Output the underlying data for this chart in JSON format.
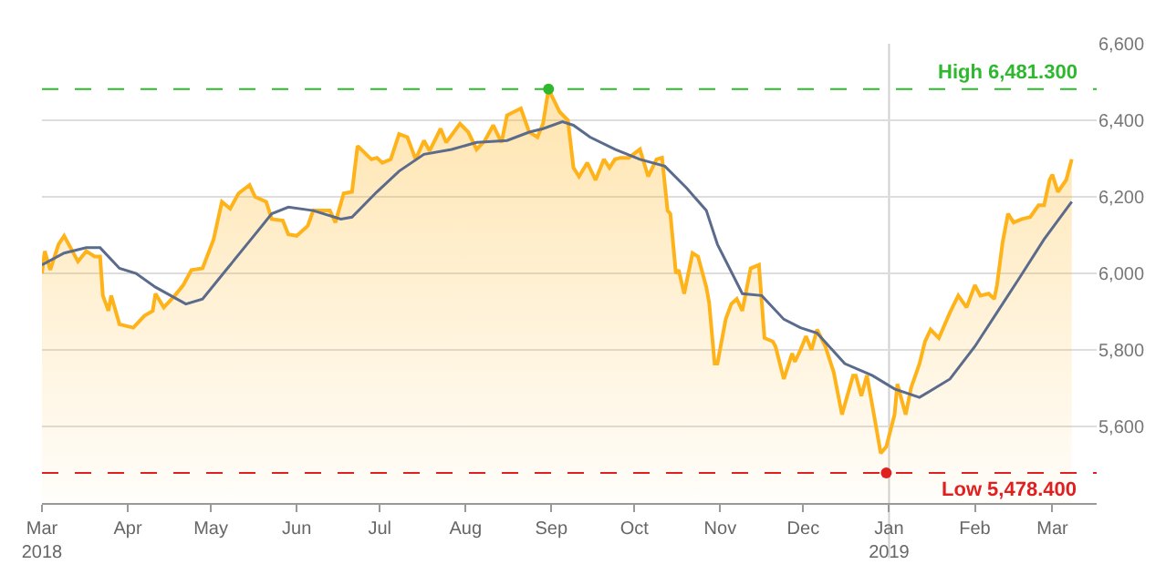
{
  "chart_data": {
    "type": "area",
    "series": [
      {
        "color": "#ffb31a",
        "x": [
          "2018-03-01",
          "2018-03-02",
          "2018-03-04",
          "2018-03-07",
          "2018-03-09",
          "2018-03-14",
          "2018-03-17",
          "2018-03-20",
          "2018-03-22",
          "2018-03-23",
          "2018-03-25",
          "2018-03-26",
          "2018-03-29",
          "2018-04-03",
          "2018-04-07",
          "2018-04-10",
          "2018-04-11",
          "2018-04-14",
          "2018-04-18",
          "2018-04-21",
          "2018-04-24",
          "2018-04-28",
          "2018-05-02",
          "2018-05-05",
          "2018-05-08",
          "2018-05-11",
          "2018-05-15",
          "2018-05-17",
          "2018-05-21",
          "2018-05-23",
          "2018-05-27",
          "2018-05-29",
          "2018-06-01",
          "2018-06-05",
          "2018-06-07",
          "2018-06-13",
          "2018-06-15",
          "2018-06-18",
          "2018-06-21",
          "2018-06-23",
          "2018-06-28",
          "2018-06-30",
          "2018-07-02",
          "2018-07-05",
          "2018-07-08",
          "2018-07-11",
          "2018-07-14",
          "2018-07-17",
          "2018-07-19",
          "2018-07-23",
          "2018-07-25",
          "2018-07-30",
          "2018-08-02",
          "2018-08-05",
          "2018-08-08",
          "2018-08-11",
          "2018-08-14",
          "2018-08-16",
          "2018-08-21",
          "2018-08-24",
          "2018-08-27",
          "2018-08-29",
          "2018-08-31",
          "2018-09-04",
          "2018-09-07",
          "2018-09-09",
          "2018-09-11",
          "2018-09-14",
          "2018-09-17",
          "2018-09-20",
          "2018-09-22",
          "2018-09-24",
          "2018-09-26",
          "2018-09-29",
          "2018-10-03",
          "2018-10-06",
          "2018-10-09",
          "2018-10-11",
          "2018-10-13",
          "2018-10-14",
          "2018-10-16",
          "2018-10-17",
          "2018-10-19",
          "2018-10-22",
          "2018-10-24",
          "2018-10-27",
          "2018-10-28",
          "2018-10-30",
          "2018-10-31",
          "2018-11-03",
          "2018-11-05",
          "2018-11-07",
          "2018-11-09",
          "2018-11-12",
          "2018-11-15",
          "2018-11-17",
          "2018-11-20",
          "2018-11-21",
          "2018-11-24",
          "2018-11-27",
          "2018-11-28",
          "2018-11-30",
          "2018-12-02",
          "2018-12-04",
          "2018-12-06",
          "2018-12-09",
          "2018-12-12",
          "2018-12-15",
          "2018-12-19",
          "2018-12-20",
          "2018-12-22",
          "2018-12-24",
          "2018-12-26",
          "2018-12-29",
          "2018-12-31",
          "2019-01-03",
          "2019-01-04",
          "2019-01-07",
          "2019-01-09",
          "2019-01-12",
          "2019-01-14",
          "2019-01-16",
          "2019-01-19",
          "2019-01-23",
          "2019-01-26",
          "2019-01-29",
          "2019-02-01",
          "2019-02-03",
          "2019-02-06",
          "2019-02-08",
          "2019-02-09",
          "2019-02-11",
          "2019-02-13",
          "2019-02-15",
          "2019-02-18",
          "2019-02-21",
          "2019-02-24",
          "2019-02-26",
          "2019-02-28",
          "2019-03-01",
          "2019-03-03",
          "2019-03-06",
          "2019-03-08"
        ],
        "values": [
          6000,
          6058,
          6009,
          6076,
          6098,
          6031,
          6058,
          6044,
          6044,
          5942,
          5902,
          5942,
          5867,
          5858,
          5889,
          5902,
          5947,
          5911,
          5942,
          5969,
          6009,
          6013,
          6089,
          6187,
          6169,
          6209,
          6231,
          6200,
          6187,
          6142,
          6138,
          6102,
          6098,
          6124,
          6164,
          6164,
          6133,
          6209,
          6213,
          6333,
          6298,
          6302,
          6289,
          6298,
          6364,
          6356,
          6298,
          6347,
          6320,
          6378,
          6342,
          6391,
          6369,
          6324,
          6347,
          6387,
          6342,
          6413,
          6431,
          6369,
          6356,
          6391,
          6481.3,
          6422,
          6400,
          6276,
          6253,
          6289,
          6244,
          6298,
          6276,
          6298,
          6302,
          6302,
          6324,
          6253,
          6298,
          6302,
          6164,
          6156,
          6000,
          6009,
          5947,
          6053,
          6044,
          5964,
          5924,
          5764,
          5764,
          5880,
          5920,
          5933,
          5902,
          6013,
          6022,
          5831,
          5822,
          5809,
          5724,
          5791,
          5769,
          5800,
          5836,
          5800,
          5853,
          5809,
          5742,
          5631,
          5733,
          5733,
          5680,
          5733,
          5653,
          5530,
          5547,
          5631,
          5711,
          5631,
          5702,
          5764,
          5822,
          5853,
          5831,
          5898,
          5942,
          5911,
          5969,
          5942,
          5947,
          5933,
          5969,
          6080,
          6156,
          6133,
          6142,
          6147,
          6178,
          6178,
          6244,
          6258,
          6213,
          6244,
          6298
        ]
      },
      {
        "type": "line",
        "color": "#5b6b8c",
        "x": [
          "2018-03-01",
          "2018-03-09",
          "2018-03-17",
          "2018-03-22",
          "2018-03-29",
          "2018-04-04",
          "2018-04-11",
          "2018-04-22",
          "2018-04-28",
          "2018-05-07",
          "2018-05-17",
          "2018-05-23",
          "2018-05-29",
          "2018-06-07",
          "2018-06-17",
          "2018-06-21",
          "2018-06-30",
          "2018-07-08",
          "2018-07-17",
          "2018-07-27",
          "2018-08-05",
          "2018-08-16",
          "2018-08-24",
          "2018-08-29",
          "2018-09-05",
          "2018-09-09",
          "2018-09-15",
          "2018-09-24",
          "2018-10-03",
          "2018-10-12",
          "2018-10-20",
          "2018-10-27",
          "2018-10-31",
          "2018-11-09",
          "2018-11-16",
          "2018-11-24",
          "2018-11-30",
          "2018-12-06",
          "2018-12-16",
          "2018-12-26",
          "2019-01-03",
          "2019-01-12",
          "2019-01-23",
          "2019-02-01",
          "2019-02-09",
          "2019-02-17",
          "2019-02-26",
          "2019-03-08"
        ],
        "values": [
          6022,
          6053,
          6067,
          6067,
          6013,
          6000,
          5964,
          5920,
          5933,
          6013,
          6102,
          6156,
          6173,
          6164,
          6142,
          6147,
          6213,
          6267,
          6311,
          6324,
          6342,
          6347,
          6369,
          6378,
          6396,
          6387,
          6356,
          6324,
          6298,
          6280,
          6222,
          6164,
          6076,
          5947,
          5942,
          5880,
          5858,
          5844,
          5764,
          5733,
          5698,
          5676,
          5724,
          5809,
          5898,
          5987,
          6089,
          6187
        ]
      },
      {
        "type": "scatter",
        "marker": "circle",
        "colors": [
          "#2eb82e",
          "#e02020"
        ],
        "x": [
          "2018-08-31",
          "2018-12-31"
        ],
        "values": [
          6481.3,
          5478.4
        ]
      }
    ],
    "xlim": [
      "2018-03-01",
      "2019-03-17"
    ],
    "xticks": [
      {
        "value": "2018-03-01",
        "label": "Mar\n2018"
      },
      {
        "value": "2018-04-01",
        "label": "Apr"
      },
      {
        "value": "2018-05-01",
        "label": "May"
      },
      {
        "value": "2018-06-01",
        "label": "Jun"
      },
      {
        "value": "2018-07-01",
        "label": "Jul"
      },
      {
        "value": "2018-08-01",
        "label": "Aug"
      },
      {
        "value": "2018-09-01",
        "label": "Sep"
      },
      {
        "value": "2018-10-01",
        "label": "Oct"
      },
      {
        "value": "2018-11-01",
        "label": "Nov"
      },
      {
        "value": "2018-12-01",
        "label": "Dec"
      },
      {
        "value": "2019-01-01",
        "label": "Jan\n2019"
      },
      {
        "value": "2019-02-01",
        "label": "Feb"
      },
      {
        "value": "2019-03-01",
        "label": "Mar"
      }
    ],
    "ylim": [
      5400,
      6600
    ],
    "yticks": [
      {
        "value": 5600,
        "label": "5,600"
      },
      {
        "value": 5800,
        "label": "5,800"
      },
      {
        "value": 6000,
        "label": "6,000"
      },
      {
        "value": 6200,
        "label": "6,200"
      },
      {
        "value": 6400,
        "label": "6,400"
      },
      {
        "value": 6600,
        "label": "6,600"
      }
    ],
    "grid": "y",
    "ref_lines": [
      {
        "axis": "y",
        "value": 6481.3,
        "label": "High 6,481.300",
        "color": "#2eb82e",
        "line_style": "dashed"
      },
      {
        "axis": "y",
        "value": 5478.4,
        "label": "Low 5,478.400",
        "color": "#e02020",
        "line_style": "dashed"
      },
      {
        "axis": "x",
        "value": "2019-01-01",
        "label": null,
        "color": "#d0d0d0",
        "line_style": "solid"
      }
    ]
  }
}
